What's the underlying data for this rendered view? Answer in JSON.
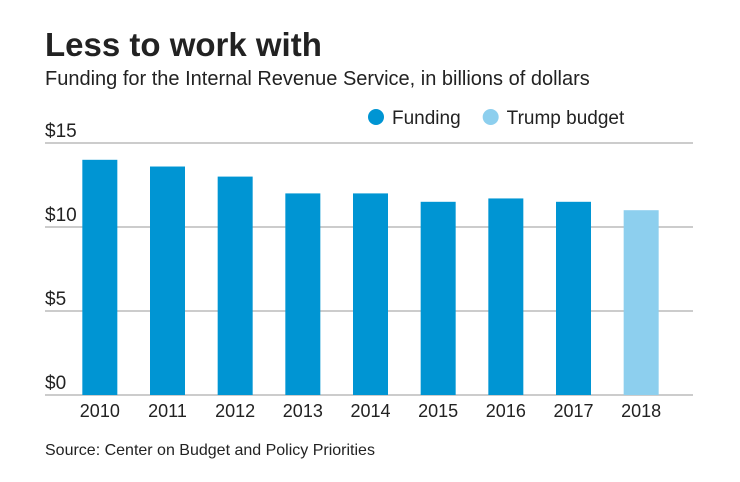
{
  "chart_data": {
    "type": "bar",
    "title": "Less to work with",
    "subtitle": "Funding for the Internal Revenue Service, in billions of dollars",
    "source": "Source: Center on Budget and Policy Priorities",
    "categories": [
      "2010",
      "2011",
      "2012",
      "2013",
      "2014",
      "2015",
      "2016",
      "2017",
      "2018"
    ],
    "series": [
      {
        "name": "Funding",
        "color": "#0095d3",
        "values": [
          14.0,
          13.6,
          13.0,
          12.0,
          12.0,
          11.5,
          11.7,
          11.5,
          null
        ]
      },
      {
        "name": "Trump budget",
        "color": "#8dcfee",
        "values": [
          null,
          null,
          null,
          null,
          null,
          null,
          null,
          null,
          11.0
        ]
      }
    ],
    "ylim": [
      0,
      15
    ],
    "yticks": [
      {
        "value": 0,
        "label": "$0"
      },
      {
        "value": 5,
        "label": "$5"
      },
      {
        "value": 10,
        "label": "$10"
      },
      {
        "value": 15,
        "label": "$15"
      }
    ],
    "grid": true
  }
}
